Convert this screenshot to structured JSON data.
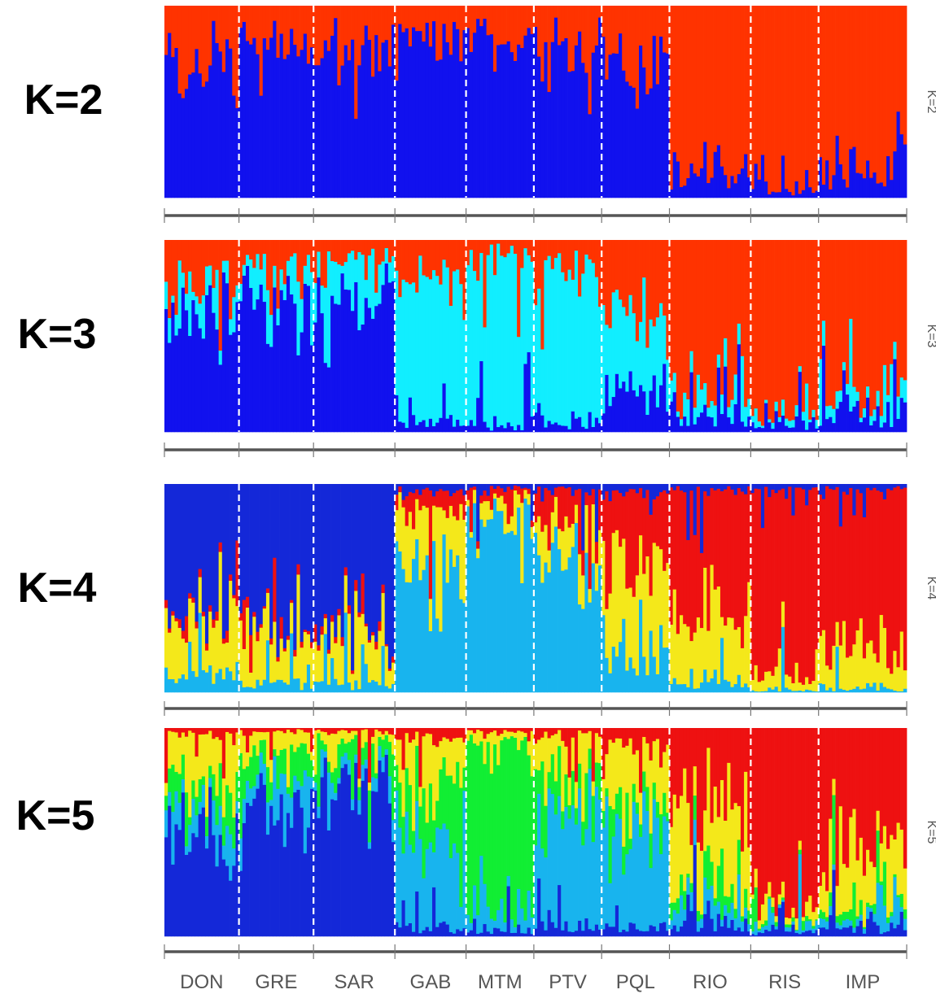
{
  "chart_data": {
    "type": "bar",
    "stacked": true,
    "populations": [
      "DON",
      "GRE",
      "SAR",
      "GAB",
      "MTM",
      "PTV",
      "PQL",
      "RIO",
      "RIS",
      "IMP"
    ],
    "individuals_per_population": [
      22,
      22,
      24,
      21,
      20,
      20,
      20,
      24,
      20,
      26
    ],
    "panels": [
      {
        "label": "K=2",
        "side_label": "K=2",
        "cluster_colors": [
          "#1111ee",
          "#ff3300"
        ],
        "bottom_to_top_order": [
          0,
          1
        ],
        "population_mean_proportions": {
          "DON": [
            0.74,
            0.26
          ],
          "GRE": [
            0.8,
            0.2
          ],
          "SAR": [
            0.8,
            0.2
          ],
          "GAB": [
            0.82,
            0.18
          ],
          "MTM": [
            0.88,
            0.12
          ],
          "PTV": [
            0.8,
            0.2
          ],
          "PQL": [
            0.7,
            0.3
          ],
          "RIO": [
            0.12,
            0.88
          ],
          "RIS": [
            0.04,
            0.96
          ],
          "IMP": [
            0.12,
            0.88
          ]
        }
      },
      {
        "label": "K=3",
        "side_label": "K=3",
        "cluster_colors": [
          "#1111ee",
          "#11eeff",
          "#ff3300"
        ],
        "bottom_to_top_order": [
          0,
          1,
          2
        ],
        "population_mean_proportions": {
          "DON": [
            0.62,
            0.1,
            0.28
          ],
          "GRE": [
            0.7,
            0.15,
            0.15
          ],
          "SAR": [
            0.74,
            0.14,
            0.12
          ],
          "GAB": [
            0.05,
            0.75,
            0.2
          ],
          "MTM": [
            0.03,
            0.9,
            0.07
          ],
          "PTV": [
            0.05,
            0.8,
            0.15
          ],
          "PQL": [
            0.2,
            0.45,
            0.35
          ],
          "RIO": [
            0.1,
            0.1,
            0.8
          ],
          "RIS": [
            0.04,
            0.03,
            0.93
          ],
          "IMP": [
            0.08,
            0.07,
            0.85
          ]
        }
      },
      {
        "label": "K=4",
        "side_label": "K=4",
        "cluster_colors": [
          "#1428d8",
          "#ee1111",
          "#f4e81a",
          "#18b4ee"
        ],
        "bottom_to_top_order": [
          3,
          2,
          1,
          0
        ],
        "population_mean_proportions": {
          "DON": [
            0.62,
            0.03,
            0.25,
            0.1
          ],
          "GRE": [
            0.7,
            0.03,
            0.22,
            0.05
          ],
          "SAR": [
            0.75,
            0.03,
            0.17,
            0.05
          ],
          "GAB": [
            0.04,
            0.08,
            0.28,
            0.6
          ],
          "MTM": [
            0.02,
            0.03,
            0.08,
            0.87
          ],
          "PTV": [
            0.03,
            0.15,
            0.15,
            0.67
          ],
          "PQL": [
            0.05,
            0.35,
            0.4,
            0.2
          ],
          "RIO": [
            0.03,
            0.6,
            0.32,
            0.05
          ],
          "RIS": [
            0.02,
            0.92,
            0.05,
            0.01
          ],
          "IMP": [
            0.03,
            0.75,
            0.2,
            0.02
          ]
        }
      },
      {
        "label": "K=5",
        "side_label": "K=5",
        "cluster_colors": [
          "#1428d8",
          "#18b4ee",
          "#11ee33",
          "#f4e81a",
          "#ee1111"
        ],
        "bottom_to_top_order": [
          0,
          1,
          2,
          3,
          4
        ],
        "population_mean_proportions": {
          "DON": [
            0.55,
            0.12,
            0.1,
            0.2,
            0.03
          ],
          "GRE": [
            0.68,
            0.1,
            0.1,
            0.1,
            0.02
          ],
          "SAR": [
            0.78,
            0.06,
            0.08,
            0.06,
            0.02
          ],
          "GAB": [
            0.05,
            0.4,
            0.25,
            0.25,
            0.05
          ],
          "MTM": [
            0.03,
            0.1,
            0.8,
            0.05,
            0.02
          ],
          "PTV": [
            0.04,
            0.6,
            0.2,
            0.12,
            0.04
          ],
          "PQL": [
            0.05,
            0.5,
            0.1,
            0.25,
            0.1
          ],
          "RIO": [
            0.05,
            0.08,
            0.07,
            0.35,
            0.45
          ],
          "RIS": [
            0.02,
            0.02,
            0.01,
            0.05,
            0.9
          ],
          "IMP": [
            0.04,
            0.03,
            0.03,
            0.25,
            0.65
          ]
        }
      }
    ],
    "legend": "none",
    "grid": false
  }
}
